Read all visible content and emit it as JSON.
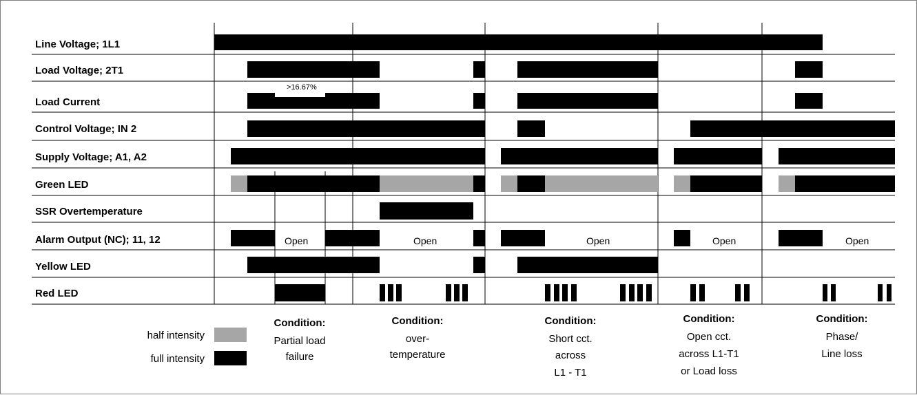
{
  "rows": [
    "Line Voltage; 1L1",
    "Load Voltage; 2T1",
    "Load Current",
    "Control Voltage; IN 2",
    "Supply Voltage; A1, A2",
    "Green LED",
    "SSR Overtemperature",
    "Alarm Output (NC); 11, 12",
    "Yellow LED",
    "Red LED"
  ],
  "annotations": {
    "threshold": ">16.67%",
    "open_label": "Open"
  },
  "legend": {
    "half": "half intensity",
    "full": "full intensity"
  },
  "conditions": [
    {
      "heading": "Condition:",
      "lines": [
        "Partial load",
        "failure"
      ]
    },
    {
      "heading": "Condition:",
      "lines": [
        "over-",
        "temperature"
      ]
    },
    {
      "heading": "Condition:",
      "lines": [
        "Short cct.",
        "across",
        "L1 - T1"
      ]
    },
    {
      "heading": "Condition:",
      "lines": [
        "Open cct.",
        "across L1-T1",
        "or Load loss"
      ]
    },
    {
      "heading": "Condition:",
      "lines": [
        "Phase/",
        "Line loss"
      ]
    }
  ],
  "colors": {
    "full": "#000000",
    "half": "#a6a6a6",
    "grid": "#000000"
  }
}
